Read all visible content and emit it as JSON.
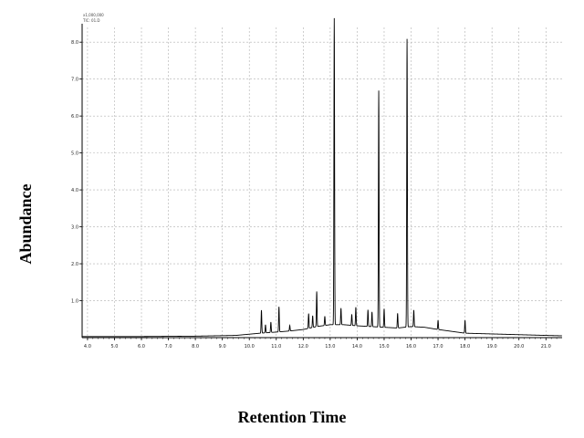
{
  "header": {
    "scale_note": "x1,000,000",
    "trace_note": "TIC: 01.D"
  },
  "chart_data": {
    "type": "line",
    "title": "",
    "xlabel": "Retention Time",
    "ylabel": "Abundance",
    "xlim": [
      3.8,
      21.6
    ],
    "ylim": [
      0,
      8.4
    ],
    "x_ticks": [
      4.0,
      5.0,
      6.0,
      7.0,
      8.0,
      9.0,
      10.0,
      11.0,
      12.0,
      13.0,
      14.0,
      15.0,
      16.0,
      17.0,
      18.0,
      19.0,
      20.0,
      21.0
    ],
    "x_tick_labels": [
      "4.0",
      "5.0",
      "6.0",
      "7.0",
      "8.0",
      "9.0",
      "10.0",
      "11.0",
      "12.0",
      "13.0",
      "14.0",
      "15.0",
      "16.0",
      "17.0",
      "18.0",
      "19.0",
      "20.0",
      "21.0"
    ],
    "y_ticks": [
      1,
      2,
      3,
      4,
      5,
      6,
      7,
      8
    ],
    "y_tick_labels": [
      "1.0",
      "2.0",
      "3.0",
      "4.0",
      "5.0",
      "6.0",
      "7.0",
      "8.0"
    ],
    "grid": true,
    "baseline": [
      [
        3.8,
        0.03
      ],
      [
        6.0,
        0.03
      ],
      [
        8.0,
        0.04
      ],
      [
        9.5,
        0.06
      ],
      [
        10.4,
        0.12
      ],
      [
        11.0,
        0.15
      ],
      [
        11.5,
        0.18
      ],
      [
        12.0,
        0.22
      ],
      [
        12.5,
        0.3
      ],
      [
        13.0,
        0.35
      ],
      [
        13.5,
        0.35
      ],
      [
        14.0,
        0.32
      ],
      [
        14.5,
        0.3
      ],
      [
        15.0,
        0.28
      ],
      [
        15.5,
        0.26
      ],
      [
        16.0,
        0.3
      ],
      [
        16.5,
        0.28
      ],
      [
        17.0,
        0.22
      ],
      [
        18.0,
        0.12
      ],
      [
        19.0,
        0.1
      ],
      [
        20.0,
        0.08
      ],
      [
        21.0,
        0.06
      ],
      [
        21.6,
        0.05
      ]
    ],
    "peaks": [
      [
        10.45,
        0.62
      ],
      [
        10.6,
        0.22
      ],
      [
        10.8,
        0.28
      ],
      [
        11.1,
        0.68
      ],
      [
        11.5,
        0.15
      ],
      [
        12.2,
        0.4
      ],
      [
        12.35,
        0.32
      ],
      [
        12.5,
        0.95
      ],
      [
        12.8,
        0.25
      ],
      [
        13.15,
        8.3
      ],
      [
        13.4,
        0.45
      ],
      [
        13.8,
        0.3
      ],
      [
        13.95,
        0.5
      ],
      [
        14.4,
        0.45
      ],
      [
        14.55,
        0.4
      ],
      [
        14.8,
        6.4
      ],
      [
        15.0,
        0.5
      ],
      [
        15.5,
        0.4
      ],
      [
        15.85,
        7.8
      ],
      [
        16.1,
        0.45
      ],
      [
        17.0,
        0.25
      ],
      [
        18.0,
        0.35
      ]
    ]
  }
}
